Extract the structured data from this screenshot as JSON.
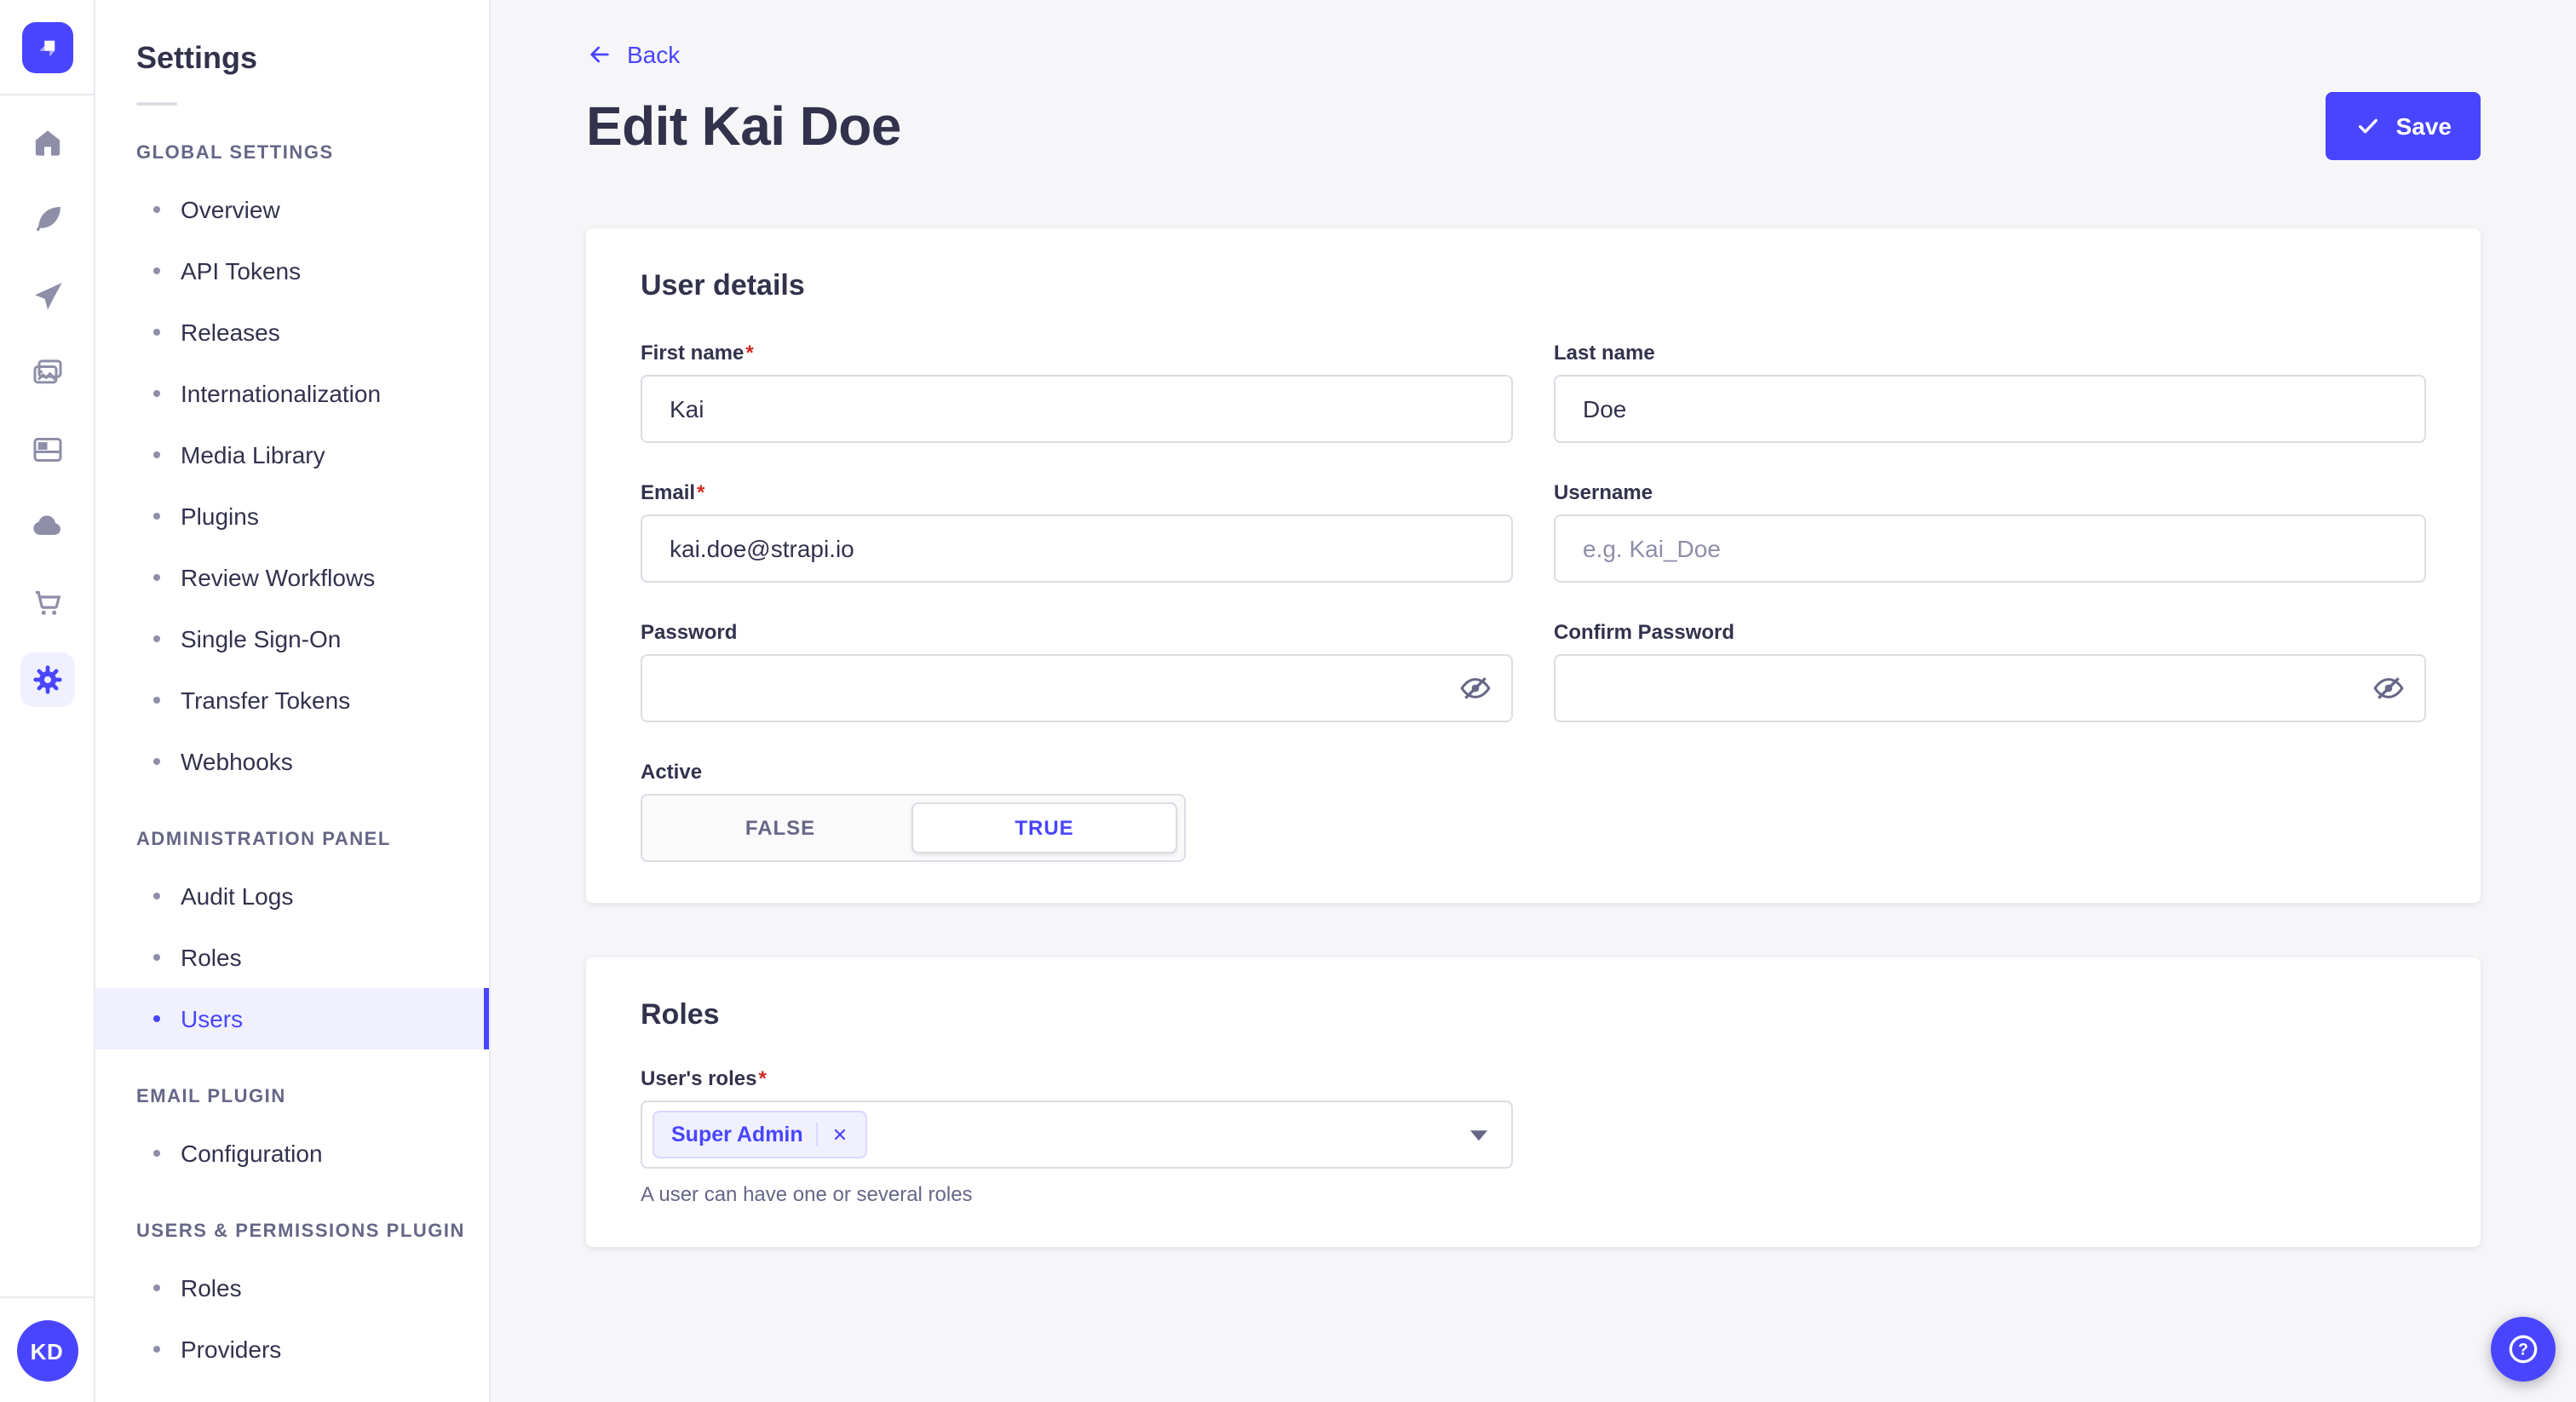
{
  "colors": {
    "primary": "#4945FF",
    "primary_light": "#F0F0FF",
    "primary_border": "#D9D8FF",
    "text": "#32324D",
    "muted": "#666687",
    "icon_grey": "#8E8EA9",
    "border": "#DCDCE4",
    "divider": "#EAEAEF",
    "background": "#F6F6F9",
    "danger": "#D02B20"
  },
  "ui": {
    "required_marker": "*"
  },
  "nav_rail": {
    "logo_icon": "strapi-logo-icon",
    "icons": [
      "home-icon",
      "feather-icon",
      "paper-plane-icon",
      "pictures-icon",
      "layout-icon",
      "cloud-icon",
      "cart-icon",
      "gear-icon"
    ],
    "active_icon": "gear-icon",
    "avatar_initials": "KD"
  },
  "sidebar": {
    "title": "Settings",
    "sections": [
      {
        "label": "GLOBAL SETTINGS",
        "items": [
          {
            "label": "Overview"
          },
          {
            "label": "API Tokens"
          },
          {
            "label": "Releases"
          },
          {
            "label": "Internationalization"
          },
          {
            "label": "Media Library"
          },
          {
            "label": "Plugins"
          },
          {
            "label": "Review Workflows"
          },
          {
            "label": "Single Sign-On"
          },
          {
            "label": "Transfer Tokens"
          },
          {
            "label": "Webhooks"
          }
        ]
      },
      {
        "label": "ADMINISTRATION PANEL",
        "items": [
          {
            "label": "Audit Logs"
          },
          {
            "label": "Roles"
          },
          {
            "label": "Users",
            "active": true
          }
        ]
      },
      {
        "label": "EMAIL PLUGIN",
        "items": [
          {
            "label": "Configuration"
          }
        ]
      },
      {
        "label": "USERS & PERMISSIONS PLUGIN",
        "items": [
          {
            "label": "Roles"
          },
          {
            "label": "Providers"
          }
        ]
      }
    ]
  },
  "header": {
    "back_label": "Back",
    "title": "Edit Kai Doe",
    "save_label": "Save"
  },
  "user_details": {
    "section_title": "User details",
    "fields": {
      "first_name": {
        "label": "First name",
        "required": true,
        "value": "Kai"
      },
      "last_name": {
        "label": "Last name",
        "value": "Doe"
      },
      "email": {
        "label": "Email",
        "required": true,
        "value": "kai.doe@strapi.io"
      },
      "username": {
        "label": "Username",
        "placeholder": "e.g. Kai_Doe",
        "value": ""
      },
      "password": {
        "label": "Password",
        "value": "",
        "icon": "eye-slash-icon"
      },
      "confirm_password": {
        "label": "Confirm Password",
        "value": "",
        "icon": "eye-slash-icon"
      },
      "active": {
        "label": "Active",
        "options": [
          "FALSE",
          "TRUE"
        ],
        "selected": "TRUE"
      }
    }
  },
  "roles_section": {
    "section_title": "Roles",
    "label": "User's roles",
    "required": true,
    "selected_roles": [
      "Super Admin"
    ],
    "hint": "A user can have one or several roles"
  },
  "help": {
    "icon": "question-circle-icon"
  }
}
